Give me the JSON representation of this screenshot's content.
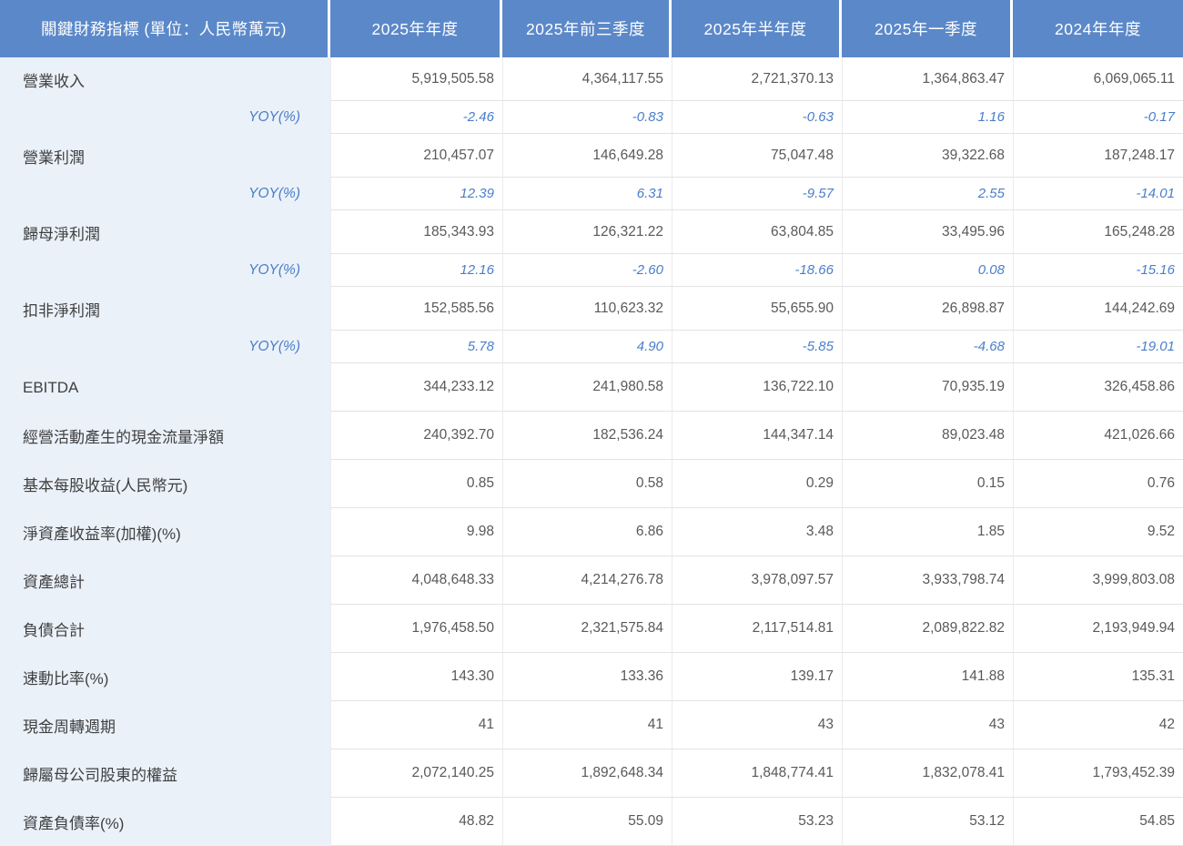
{
  "chart_data": {
    "type": "table",
    "title": "關鍵財務指標 (單位：人民幣萬元)",
    "columns": [
      "2025年年度",
      "2025年前三季度",
      "2025年半年度",
      "2025年一季度",
      "2024年年度"
    ],
    "rows": [
      {
        "type": "metric-paired",
        "label": "營業收入",
        "values": [
          "5,919,505.58",
          "4,364,117.55",
          "2,721,370.13",
          "1,364,863.47",
          "6,069,065.11"
        ]
      },
      {
        "type": "yoy",
        "label": "YOY(%)",
        "values": [
          "-2.46",
          "-0.83",
          "-0.63",
          "1.16",
          "-0.17"
        ]
      },
      {
        "type": "metric-paired",
        "label": "營業利潤",
        "values": [
          "210,457.07",
          "146,649.28",
          "75,047.48",
          "39,322.68",
          "187,248.17"
        ]
      },
      {
        "type": "yoy",
        "label": "YOY(%)",
        "values": [
          "12.39",
          "6.31",
          "-9.57",
          "2.55",
          "-14.01"
        ]
      },
      {
        "type": "metric-paired",
        "label": "歸母淨利潤",
        "values": [
          "185,343.93",
          "126,321.22",
          "63,804.85",
          "33,495.96",
          "165,248.28"
        ]
      },
      {
        "type": "yoy",
        "label": "YOY(%)",
        "values": [
          "12.16",
          "-2.60",
          "-18.66",
          "0.08",
          "-15.16"
        ]
      },
      {
        "type": "metric-paired",
        "label": "扣非淨利潤",
        "values": [
          "152,585.56",
          "110,623.32",
          "55,655.90",
          "26,898.87",
          "144,242.69"
        ]
      },
      {
        "type": "yoy",
        "label": "YOY(%)",
        "values": [
          "5.78",
          "4.90",
          "-5.85",
          "-4.68",
          "-19.01"
        ]
      },
      {
        "type": "metric",
        "label": "EBITDA",
        "values": [
          "344,233.12",
          "241,980.58",
          "136,722.10",
          "70,935.19",
          "326,458.86"
        ]
      },
      {
        "type": "metric",
        "label": "經營活動產生的現金流量淨額",
        "values": [
          "240,392.70",
          "182,536.24",
          "144,347.14",
          "89,023.48",
          "421,026.66"
        ]
      },
      {
        "type": "metric",
        "label": "基本每股收益(人民幣元)",
        "values": [
          "0.85",
          "0.58",
          "0.29",
          "0.15",
          "0.76"
        ]
      },
      {
        "type": "metric",
        "label": "淨資產收益率(加權)(%)",
        "values": [
          "9.98",
          "6.86",
          "3.48",
          "1.85",
          "9.52"
        ]
      },
      {
        "type": "metric",
        "label": "資產總計",
        "values": [
          "4,048,648.33",
          "4,214,276.78",
          "3,978,097.57",
          "3,933,798.74",
          "3,999,803.08"
        ]
      },
      {
        "type": "metric",
        "label": "負債合計",
        "values": [
          "1,976,458.50",
          "2,321,575.84",
          "2,117,514.81",
          "2,089,822.82",
          "2,193,949.94"
        ]
      },
      {
        "type": "metric",
        "label": "速動比率(%)",
        "values": [
          "143.30",
          "133.36",
          "139.17",
          "141.88",
          "135.31"
        ]
      },
      {
        "type": "metric",
        "label": "現金周轉週期",
        "values": [
          "41",
          "41",
          "43",
          "43",
          "42"
        ]
      },
      {
        "type": "metric",
        "label": "歸屬母公司股東的權益",
        "values": [
          "2,072,140.25",
          "1,892,648.34",
          "1,848,774.41",
          "1,832,078.41",
          "1,793,452.39"
        ]
      },
      {
        "type": "metric",
        "label": "資產負債率(%)",
        "values": [
          "48.82",
          "55.09",
          "53.23",
          "53.12",
          "54.85"
        ]
      }
    ],
    "layout": {
      "legend": "none",
      "grid": "light horizontal and vertical hairlines in value area"
    },
    "colors": {
      "header_bg": "#5B88C9",
      "header_text": "#FFFFFF",
      "label_column_bg": "#EAF1F9",
      "label_text": "#3F3F3F",
      "value_text": "#595959",
      "yoy_text": "#4A7EC9",
      "gridline": "#E3E3E3"
    }
  }
}
